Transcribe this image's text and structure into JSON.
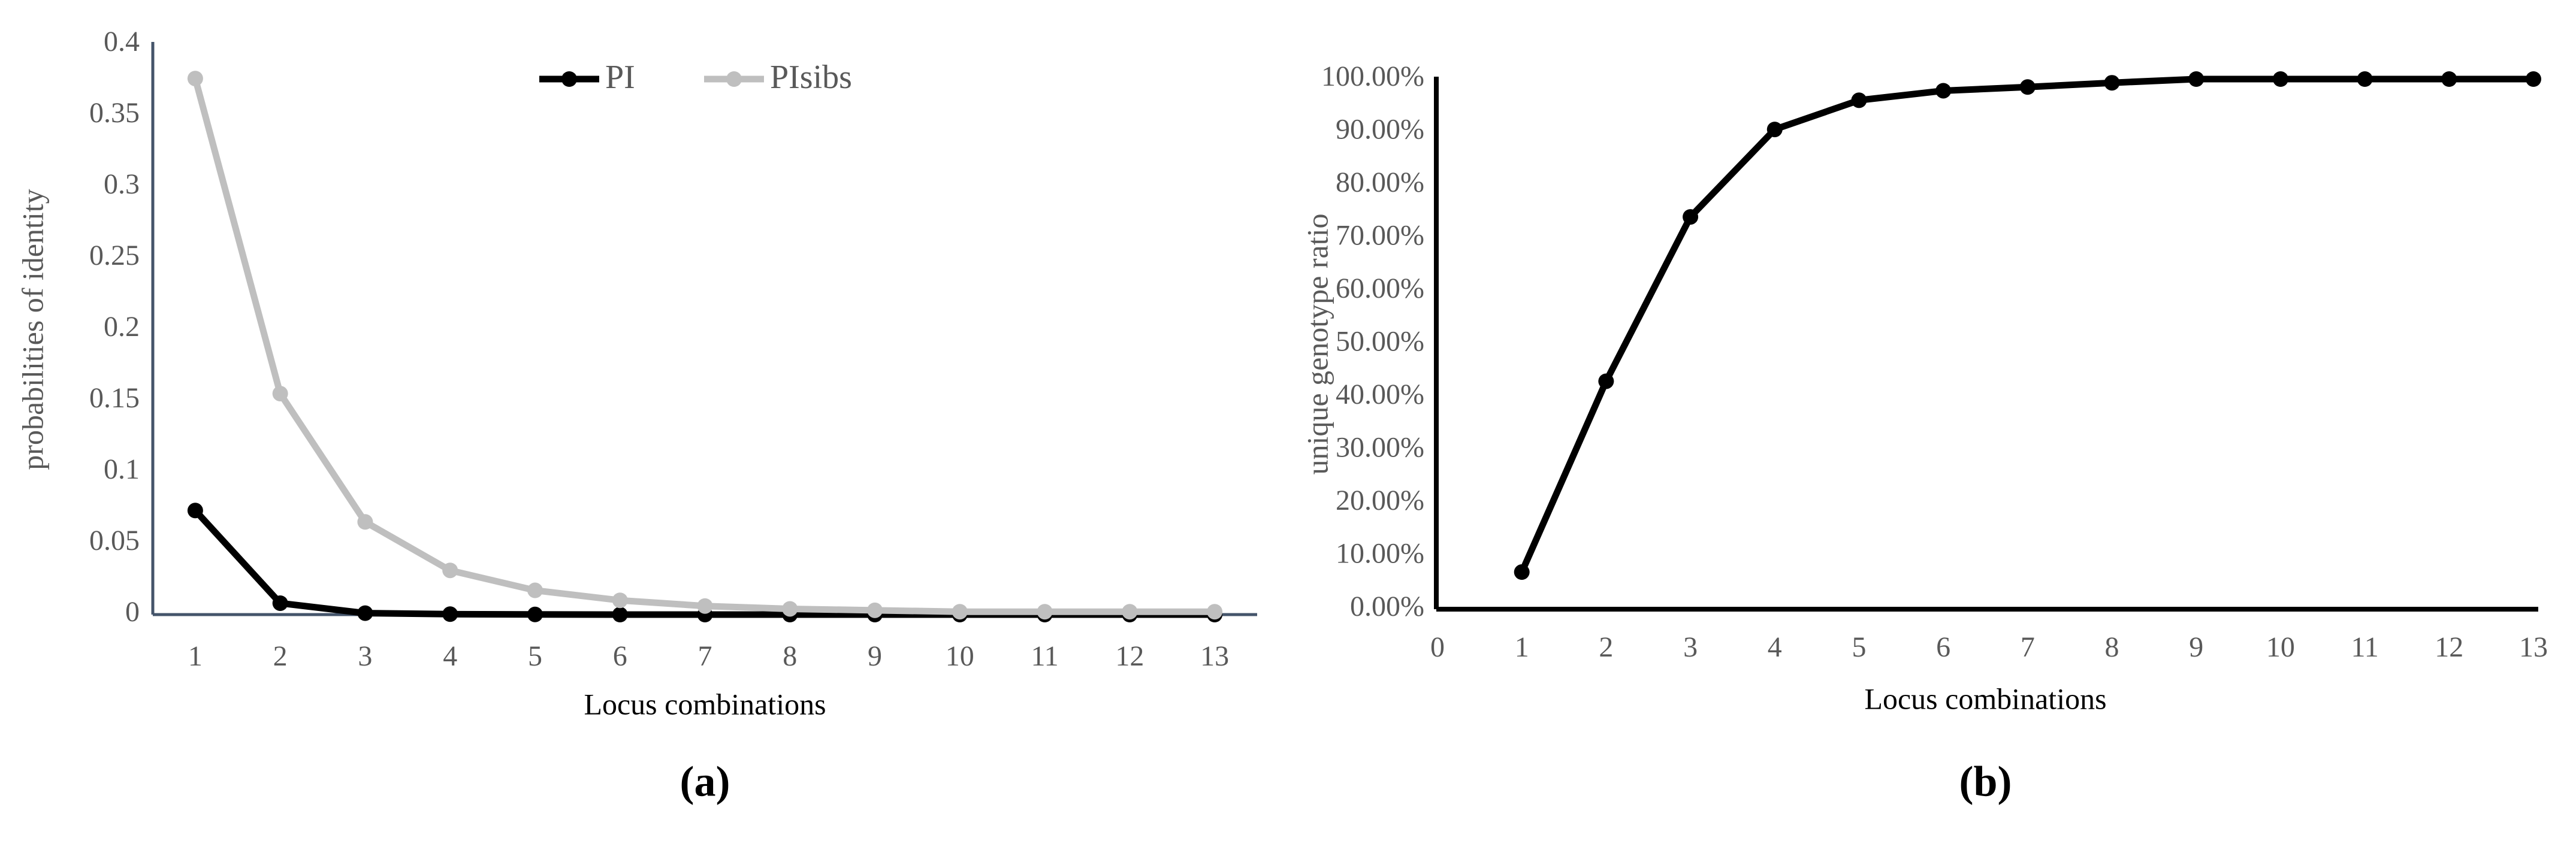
{
  "chart_data": [
    {
      "type": "line",
      "panel_label": "(a)",
      "x_label": "Locus combinations",
      "y_label": "probabilities of identity",
      "categories": [
        "1",
        "2",
        "3",
        "4",
        "5",
        "6",
        "7",
        "8",
        "9",
        "10",
        "11",
        "12",
        "13"
      ],
      "series": [
        {
          "name": "PI",
          "color": "#000000",
          "values": [
            0.073,
            0.008,
            0.001,
            0.0003,
            0.0001,
            0,
            0,
            0,
            0,
            0,
            0,
            0,
            0
          ]
        },
        {
          "name": "PIsibs",
          "color": "#bfbfbf",
          "values": [
            0.376,
            0.155,
            0.065,
            0.031,
            0.017,
            0.01,
            0.006,
            0.004,
            0.003,
            0.002,
            0.002,
            0.002,
            0.002
          ]
        }
      ],
      "ylim": [
        0,
        0.4
      ],
      "yticks": [
        0,
        0.05,
        0.1,
        0.15,
        0.2,
        0.25,
        0.3,
        0.35,
        0.4
      ],
      "grid": false,
      "legend": "top",
      "axis_color": "#44546a"
    },
    {
      "type": "line",
      "panel_label": "(b)",
      "x_label": "Locus combinations",
      "y_label": "unique genotype ratio",
      "x": [
        1,
        2,
        3,
        4,
        5,
        6,
        7,
        8,
        9,
        10,
        11,
        12,
        13
      ],
      "series": [
        {
          "color": "#000000",
          "values": [
            7,
            43,
            74,
            90.5,
            96,
            97.8,
            98.5,
            99.3,
            100,
            100,
            100,
            100,
            100
          ]
        }
      ],
      "xlim": [
        0,
        13
      ],
      "xticks": [
        0,
        1,
        2,
        3,
        4,
        5,
        6,
        7,
        8,
        9,
        10,
        11,
        12,
        13
      ],
      "ylim": [
        0,
        100
      ],
      "yticks": [
        {
          "value": 0,
          "label": "0.00%"
        },
        {
          "value": 10,
          "label": "10.00%"
        },
        {
          "value": 20,
          "label": "20.00%"
        },
        {
          "value": 30,
          "label": "30.00%"
        },
        {
          "value": 40,
          "label": "40.00%"
        },
        {
          "value": 50,
          "label": "50.00%"
        },
        {
          "value": 60,
          "label": "60.00%"
        },
        {
          "value": 70,
          "label": "70.00%"
        },
        {
          "value": 80,
          "label": "80.00%"
        },
        {
          "value": 90,
          "label": "90.00%"
        },
        {
          "value": 100,
          "label": "100.00%"
        }
      ],
      "grid": false,
      "axis_color": "#000000"
    }
  ]
}
